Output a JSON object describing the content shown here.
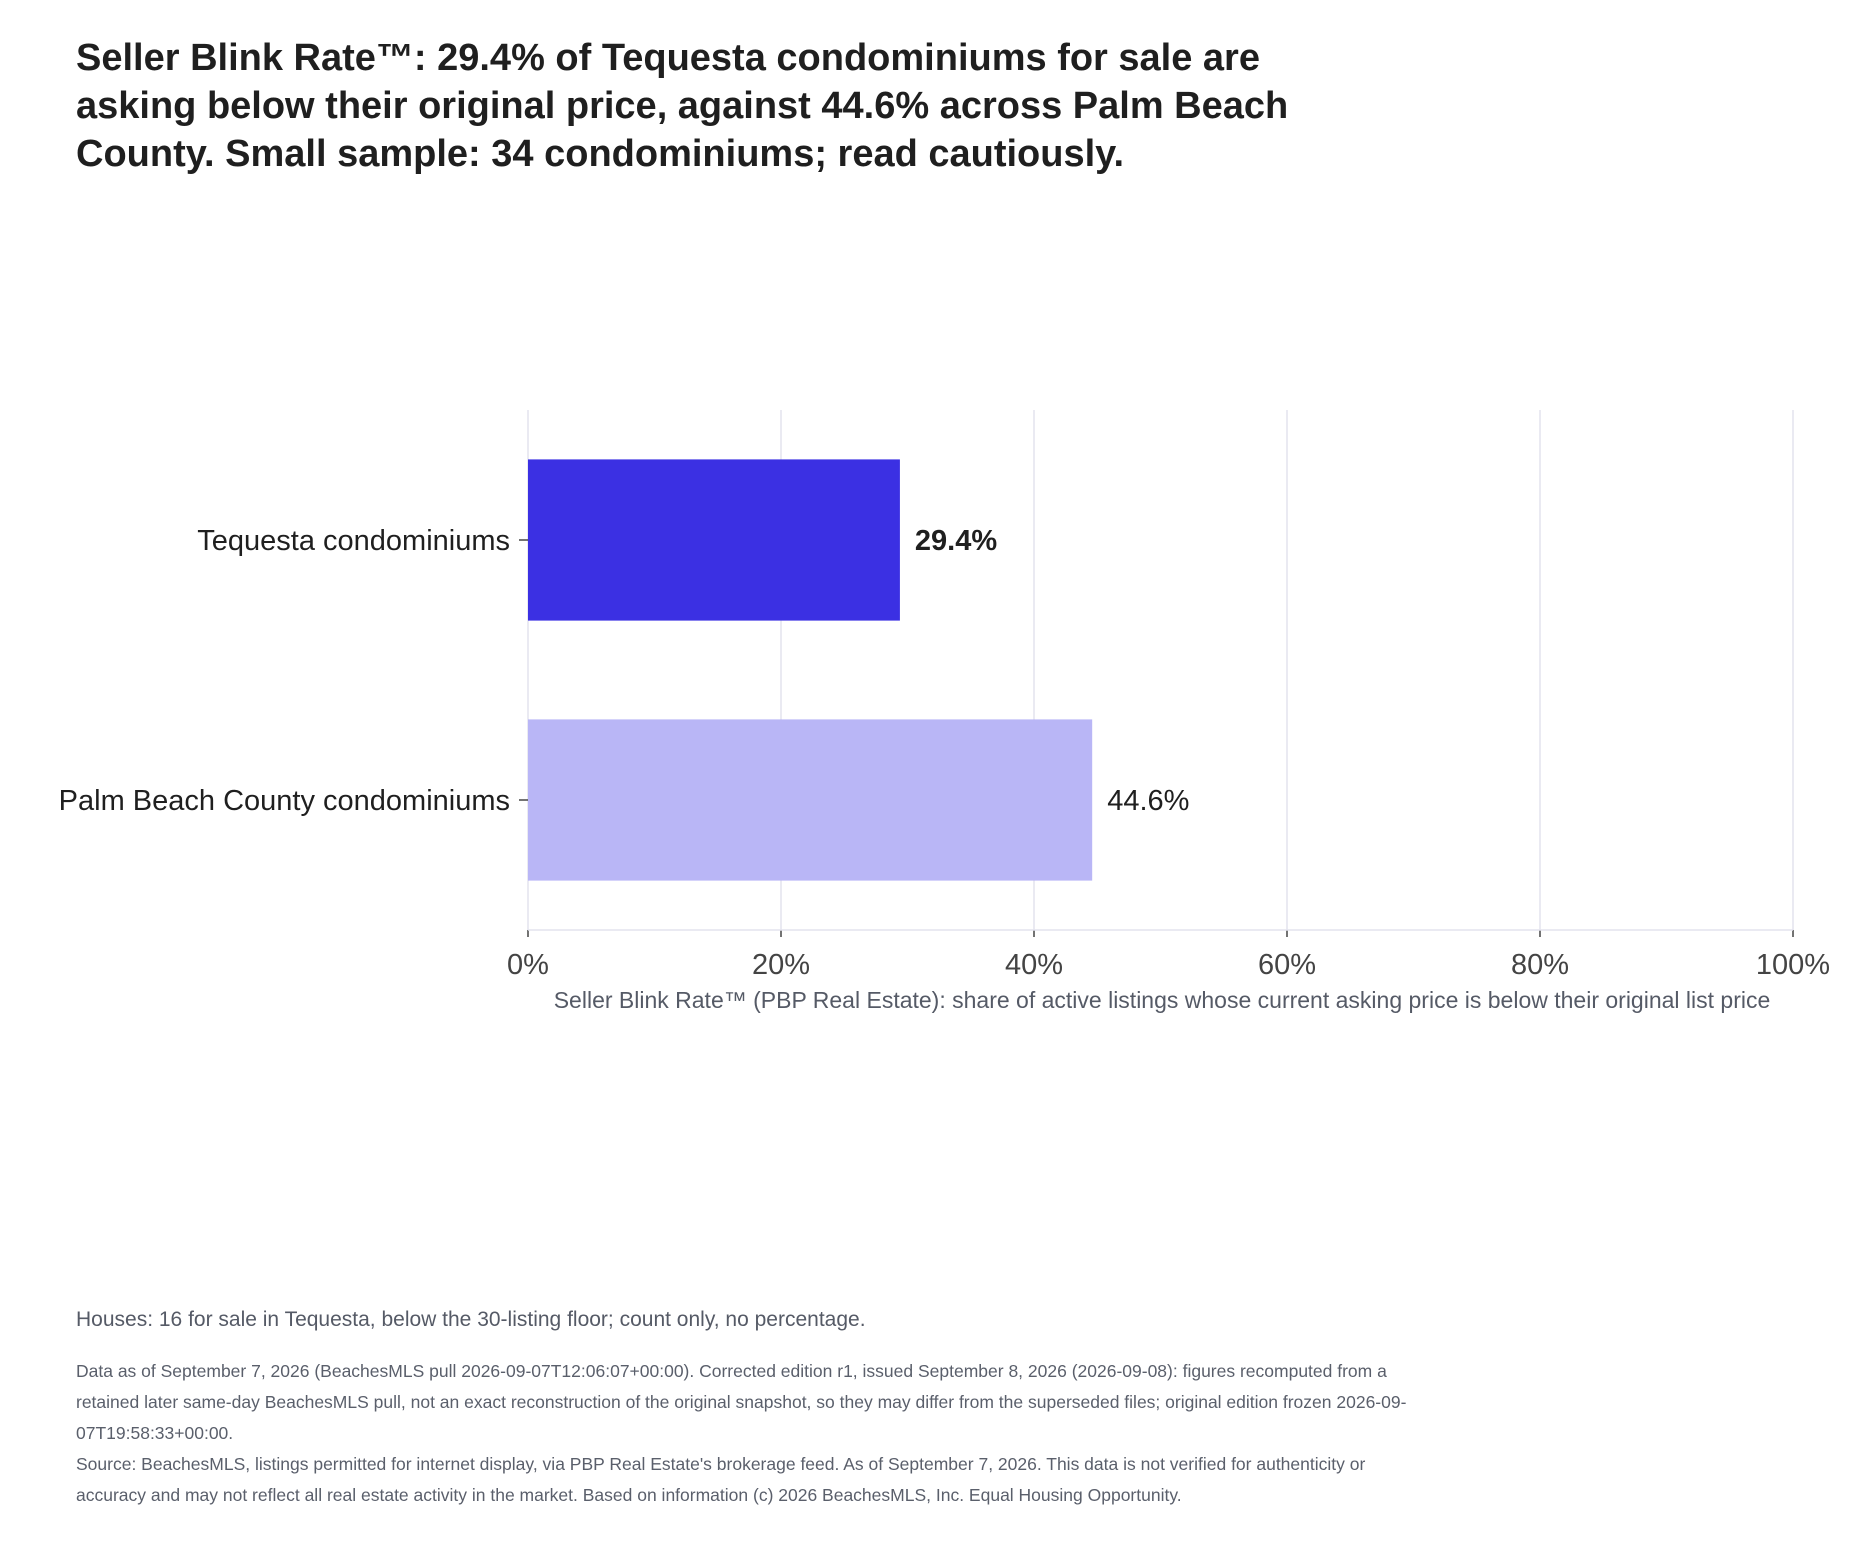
{
  "headline": "Seller Blink Rate™: 29.4% of Tequesta condominiums for sale are asking below their original price, against 44.6% across Palm Beach County. Small sample: 34 condominiums; read cautiously.",
  "chart_data": {
    "type": "bar",
    "orientation": "horizontal",
    "categories": [
      "Tequesta condominiums",
      "Palm Beach County condominiums"
    ],
    "values": [
      29.4,
      44.6
    ],
    "value_labels": [
      "29.4%",
      "44.6%"
    ],
    "colors": [
      "#3b30e3",
      "#b9b6f6"
    ],
    "xlabel": "Seller Blink Rate™ (PBP Real Estate): share of active listings whose current asking price is below their original list price",
    "xlim": [
      0,
      100
    ],
    "xticks": [
      0,
      20,
      40,
      60,
      80,
      100
    ],
    "xtick_labels": [
      "0%",
      "20%",
      "40%",
      "60%",
      "80%",
      "100%"
    ],
    "grid": "vertical",
    "legend": "none"
  },
  "footnote": "Houses: 16 for sale in Tequesta, below the 30-listing floor; count only, no percentage.",
  "data_note": "Data as of September 7, 2026 (BeachesMLS pull 2026-09-07T12:06:07+00:00). Corrected edition r1, issued September 8, 2026 (2026-09-08): figures recomputed from a retained later same-day BeachesMLS pull, not an exact reconstruction of the original snapshot, so they may differ from the superseded files; original edition frozen 2026-09-07T19:58:33+00:00.",
  "source_note": "Source: BeachesMLS, listings permitted for internet display, via PBP Real Estate's brokerage feed. As of September 7, 2026. This data is not verified for authenticity or accuracy and may not reflect all real estate activity in the market. Based on information (c) 2026 BeachesMLS, Inc. Equal Housing Opportunity."
}
